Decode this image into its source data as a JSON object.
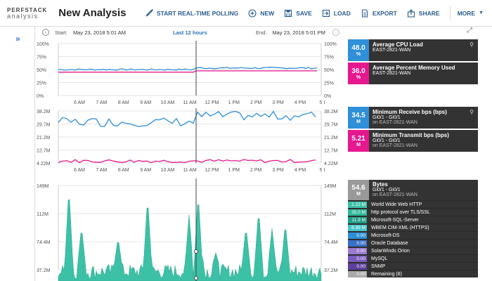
{
  "header": {
    "logo_top": "PERFSTACK",
    "logo_bottom": "analysis",
    "title": "New Analysis",
    "buttons": {
      "polling": "START REAL-TIME POLLING",
      "new": "NEW",
      "save": "SAVE",
      "load": "LOAD",
      "export": "EXPORT",
      "share": "SHARE",
      "more": "MORE"
    }
  },
  "timebar": {
    "start_label": "Start:",
    "start_value": "May 23, 2018 5:01 AM",
    "range": "Last 12 hours",
    "end_label": "End:",
    "end_value": "May 23, 2018 5:01 PM"
  },
  "chart1": {
    "y_ticks": [
      "100%",
      "75%",
      "50%",
      "25%",
      "0%"
    ],
    "x_ticks": [
      "6 AM",
      "7 AM",
      "8 AM",
      "9 AM",
      "10 AM",
      "11 AM",
      "12 PM",
      "1 PM",
      "2 PM",
      "3 PM",
      "4 PM",
      "5 I"
    ]
  },
  "chart2": {
    "y_ticks": [
      "38.2M",
      "29.7M",
      "21.2M",
      "12.7M",
      "4.22M"
    ],
    "x_ticks": [
      "6 AM",
      "7 AM",
      "8 AM",
      "9 AM",
      "10 AM",
      "11 AM",
      "12 PM",
      "1 PM",
      "2 PM",
      "3 PM",
      "4 PM",
      "5 I"
    ]
  },
  "chart3": {
    "y_ticks": [
      "149M",
      "112M",
      "74.4M",
      "37.2M"
    ]
  },
  "legend1": [
    {
      "value": "48.0",
      "unit": "%",
      "title": "Average CPU Load",
      "sub": "EAST-2821-WAN",
      "color": "#2f8fd8"
    },
    {
      "value": "36.0",
      "unit": "%",
      "title": "Average Percent Memory Used",
      "sub": "EAST-2821-WAN",
      "color": "#e6178f"
    }
  ],
  "legend2": [
    {
      "value": "34.5",
      "unit": "M",
      "title": "Minimum Receive bps (bps)",
      "sub": "Gi0/1 - Gi0/1",
      "sub2": "on EAST-2821-WAN",
      "color": "#2f8fd8"
    },
    {
      "value": "5.21",
      "unit": "M",
      "title": "Minimum Transmit bps (bps)",
      "sub": "Gi0/1 - Gi0/1",
      "sub2": "on EAST-2821-WAN",
      "color": "#e6178f"
    }
  ],
  "legend3": {
    "value": "54.6",
    "unit": "M",
    "title": "Bytes",
    "sub": "Gi0/1 - Gi0/1",
    "sub2": "on EAST-2821-WAN",
    "color": "#999999",
    "rows": [
      {
        "value": "1.22 M",
        "label": "World Wide Web HTTP",
        "color": "#3cc1a6"
      },
      {
        "value": "35.0 M",
        "label": "http protocol over TLS/SSL",
        "color": "#2fb79a"
      },
      {
        "value": "11.9 M",
        "label": "Microsoft-SQL-Server",
        "color": "#1f9f88"
      },
      {
        "value": "6.39 M",
        "label": "WBEM CIM-XML (HTTPS)",
        "color": "#48c6c9"
      },
      {
        "value": "0.00",
        "label": "Microsoft-DS",
        "color": "#2c8fd6"
      },
      {
        "value": "0.00",
        "label": "Oracle Database",
        "color": "#3a6fc8"
      },
      {
        "value": "0.00",
        "label": "SolarWinds Orion",
        "color": "#9a7bd0"
      },
      {
        "value": "0.00",
        "label": "MySQL",
        "color": "#7a5bbf"
      },
      {
        "value": "0.00",
        "label": "SNMP",
        "color": "#5c3f9a"
      },
      {
        "value": "0.00",
        "label": "Remaining (8)",
        "color": "#aaaaaa"
      }
    ]
  }
}
